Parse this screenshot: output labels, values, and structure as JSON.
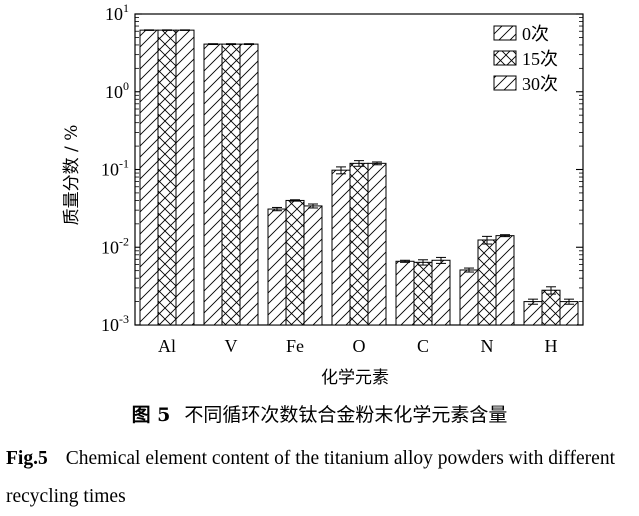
{
  "chart_data": {
    "type": "bar",
    "yscale": "log",
    "ylim": [
      0.001,
      10
    ],
    "ylabel": "质量分数 / %",
    "xlabel": "化学元素",
    "categories": [
      "Al",
      "V",
      "Fe",
      "O",
      "C",
      "N",
      "H"
    ],
    "yticks": [
      {
        "base": "10",
        "exp": "1",
        "value": 10
      },
      {
        "base": "10",
        "exp": "0",
        "value": 1
      },
      {
        "base": "10",
        "exp": "-1",
        "value": 0.1
      },
      {
        "base": "10",
        "exp": "-2",
        "value": 0.01
      },
      {
        "base": "10",
        "exp": "-3",
        "value": 0.001
      }
    ],
    "legend_position": "top-right",
    "series": [
      {
        "name": "0次",
        "pattern": "single-hatch",
        "values": [
          6.2,
          4.1,
          0.031,
          0.098,
          0.0066,
          0.0051,
          0.002
        ],
        "errors": [
          0.05,
          0.05,
          0.0015,
          0.01,
          0.0002,
          0.0003,
          0.00015
        ]
      },
      {
        "name": "15次",
        "pattern": "cross-hatch",
        "values": [
          6.2,
          4.1,
          0.04,
          0.12,
          0.0064,
          0.0124,
          0.0028
        ],
        "errors": [
          0.05,
          0.05,
          0.0008,
          0.01,
          0.0005,
          0.0014,
          0.0003
        ]
      },
      {
        "name": "30次",
        "pattern": "single-hatch",
        "values": [
          6.2,
          4.1,
          0.034,
          0.12,
          0.0068,
          0.0141,
          0.002
        ],
        "errors": [
          0.05,
          0.05,
          0.002,
          0.005,
          0.0006,
          0.0004,
          0.00015
        ]
      }
    ]
  },
  "caption": {
    "cn_label": "图 5",
    "cn_text": "不同循环次数钛合金粉末化学元素含量",
    "en_label": "Fig.5",
    "en_text": "Chemical element content of the titanium alloy powders with different recycling times"
  }
}
